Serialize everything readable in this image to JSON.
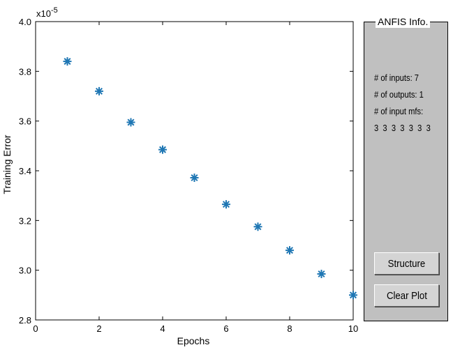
{
  "chart_data": {
    "type": "scatter",
    "xlabel": "Epochs",
    "ylabel": "Training Error",
    "exponent_label": "x10",
    "exponent_power": "-5",
    "xlim": [
      0,
      10
    ],
    "ylim": [
      2.8,
      4.0
    ],
    "xticks": [
      "0",
      "2",
      "4",
      "6",
      "8",
      "10"
    ],
    "yticks": [
      "2.8",
      "3.0",
      "3.2",
      "3.4",
      "3.6",
      "3.8",
      "4.0"
    ],
    "marker_color": "#1f77b4",
    "x": [
      1,
      2,
      3,
      4,
      5,
      6,
      7,
      8,
      9,
      10
    ],
    "y": [
      3.84,
      3.72,
      3.595,
      3.485,
      3.372,
      3.265,
      3.175,
      3.08,
      2.985,
      2.9
    ]
  },
  "panel": {
    "title": "ANFIS Info.",
    "inputs_line": "# of inputs: 7",
    "outputs_line": "# of outputs: 1",
    "mfs_label": "# of input mfs:",
    "mfs_values": "3  3  3  3  3  3  3",
    "structure_button": "Structure",
    "clear_button": "Clear Plot"
  }
}
